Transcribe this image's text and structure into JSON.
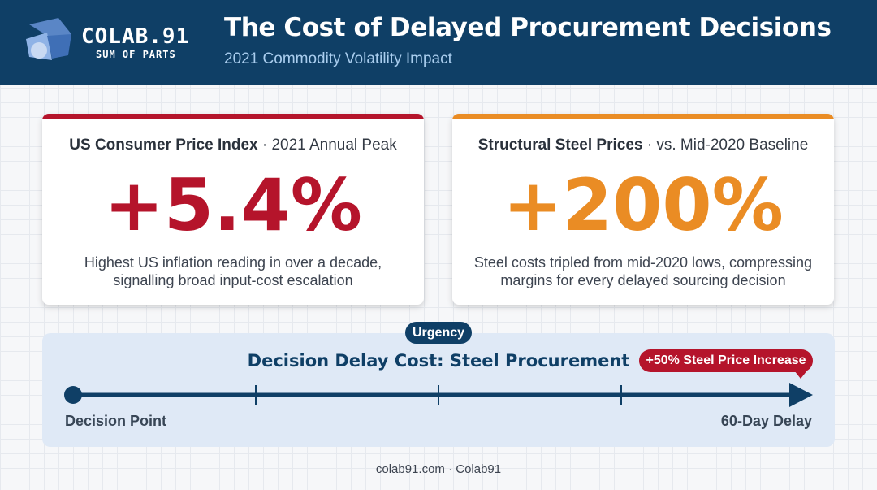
{
  "header": {
    "brand_name": "COLAB.91",
    "brand_tagline": "SUM OF PARTS",
    "title": "The Cost of Delayed Procurement Decisions",
    "subtitle": "2021 Commodity Volatility Impact"
  },
  "cards": [
    {
      "label_bold": "US Consumer Price Index",
      "label_rest": " · 2021 Annual Peak",
      "value": "+5.4%",
      "description_line1": "Highest US inflation reading in over a decade,",
      "description_line2": "signalling broad input-cost escalation",
      "accent_color": "#b5142b"
    },
    {
      "label_bold": "Structural Steel Prices",
      "label_rest": " · vs. Mid-2020 Baseline",
      "value": "+200%",
      "description_line1": "Steel costs tripled from mid-2020 lows, compressing",
      "description_line2": "margins for every delayed sourcing decision",
      "accent_color": "#ea8c24"
    }
  ],
  "timeline": {
    "badge": "Urgency",
    "title": "Decision Delay Cost: Steel Procurement",
    "callout": "+50% Steel Price Increase",
    "start_label": "Decision Point",
    "end_label": "60-Day Delay"
  },
  "footer": "colab91.com · Colab91",
  "colors": {
    "navy": "#0f3f66",
    "red": "#b5142b",
    "orange": "#ea8c24"
  },
  "icons": {
    "logo": "colab91-logo-icon"
  }
}
